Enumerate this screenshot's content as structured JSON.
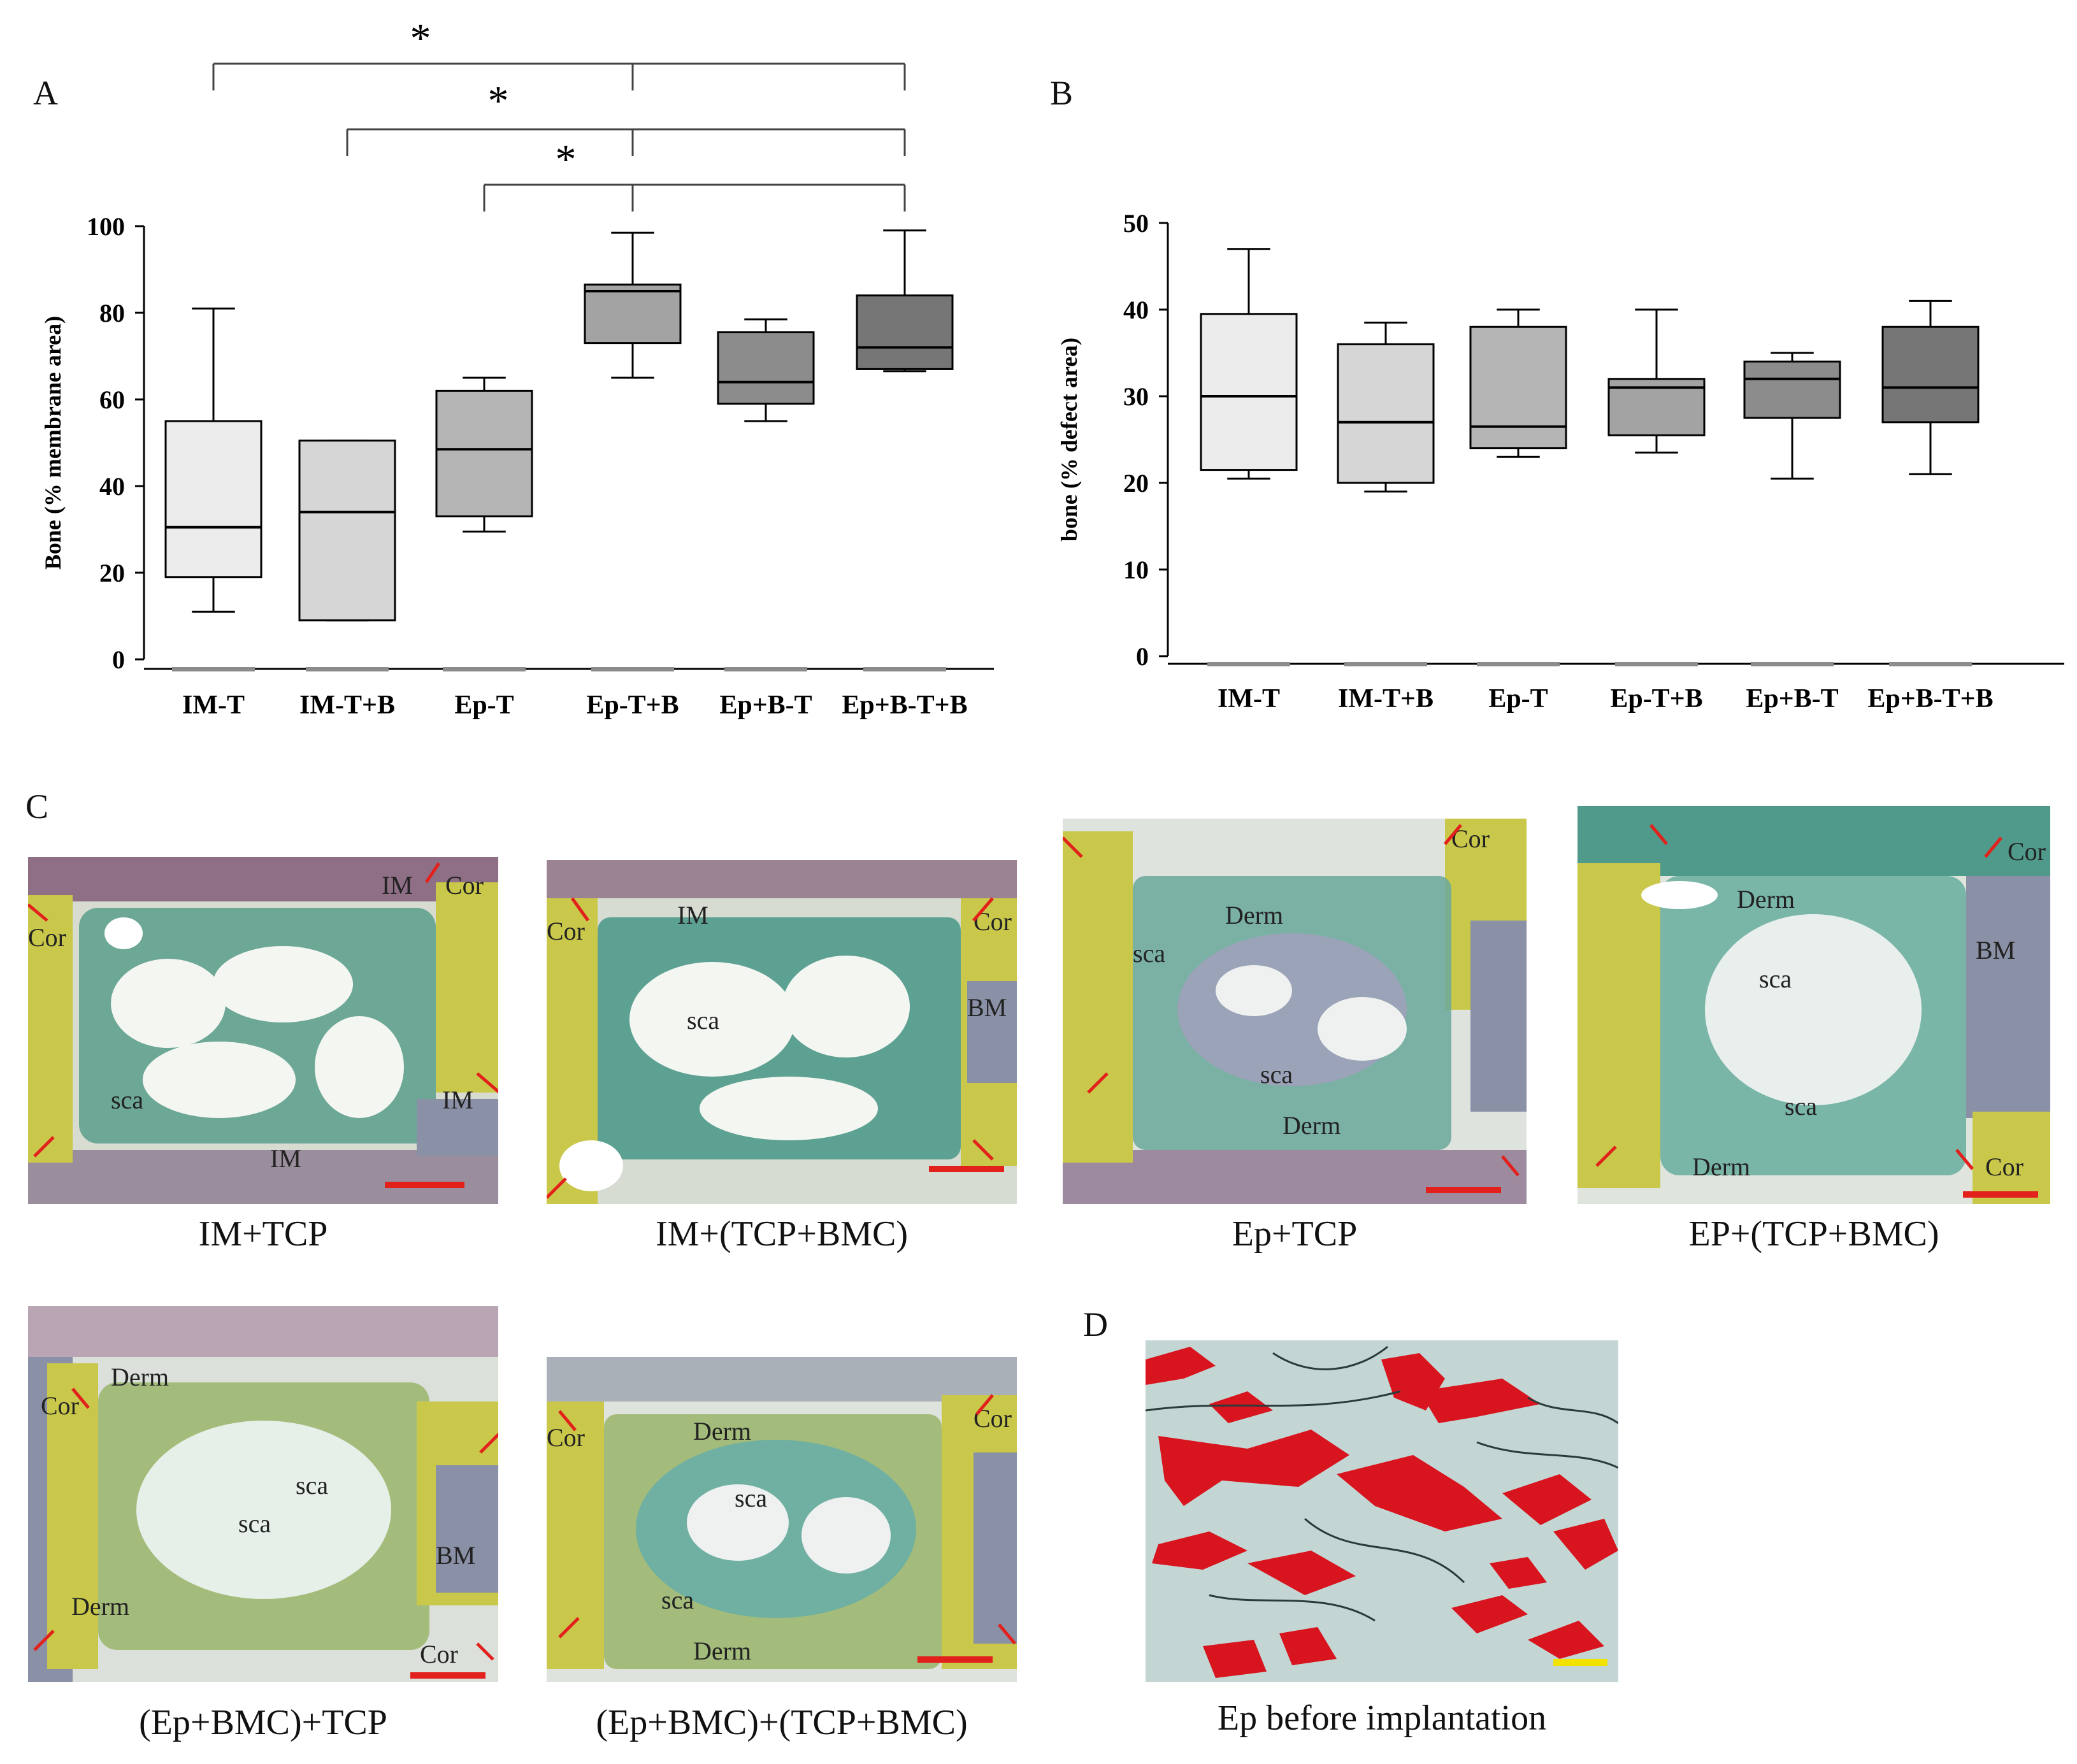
{
  "panel_labels": {
    "A": "A",
    "B": "B",
    "C": "C",
    "D": "D"
  },
  "colors": {
    "box_fills": [
      "#ececec",
      "#d6d6d6",
      "#b5b5b5",
      "#a3a3a3",
      "#8c8c8c",
      "#767676"
    ],
    "histo_yellow": "#c9c84a",
    "histo_green": "#4f9a8a",
    "histo_purple": "#7a5a7a",
    "histo_bluegrey": "#8a90a6",
    "arrow_red": "#e2211c",
    "scale_red": "#e2211c",
    "scale_yellow": "#f2e200",
    "ep_red": "#d8141e",
    "ep_bg": "#c3d6d4"
  },
  "chart_data": [
    {
      "id": "A",
      "type": "box",
      "title": "",
      "xlabel": "",
      "ylabel": "Bone (% membrane area)",
      "ylim": [
        0,
        100
      ],
      "yticks": [
        0,
        20,
        40,
        60,
        80,
        100
      ],
      "categories": [
        "IM-T",
        "IM-T+B",
        "Ep-T",
        "Ep-T+B",
        "Ep+B-T",
        "Ep+B-T+B"
      ],
      "boxes": [
        {
          "min": 11,
          "q1": 19,
          "median": 30.5,
          "q3": 55,
          "max": 81
        },
        {
          "min": 9,
          "q1": 9,
          "median": 34,
          "q3": 50.5,
          "max": 50.5
        },
        {
          "min": 29.5,
          "q1": 33,
          "median": 48.5,
          "q3": 62,
          "max": 65
        },
        {
          "min": 65,
          "q1": 73,
          "median": 85,
          "q3": 86.5,
          "max": 98.5
        },
        {
          "min": 55,
          "q1": 59,
          "median": 64,
          "q3": 75.5,
          "max": 78.5
        },
        {
          "min": 66.5,
          "q1": 67,
          "median": 72,
          "q3": 84,
          "max": 99
        }
      ],
      "significance": [
        {
          "from": "IM-T",
          "to": "Ep+B-T+B",
          "via": "Ep-T+B",
          "label": "*"
        },
        {
          "from": "IM-T+B",
          "to": "Ep+B-T+B",
          "via": "Ep-T+B",
          "label": "*"
        },
        {
          "from": "Ep-T",
          "to": "Ep+B-T+B",
          "via": "Ep-T+B",
          "label": "*"
        }
      ]
    },
    {
      "id": "B",
      "type": "box",
      "title": "",
      "xlabel": "",
      "ylabel": "bone (% defect area)",
      "ylim": [
        0,
        50
      ],
      "yticks": [
        0,
        10,
        20,
        30,
        40,
        50
      ],
      "categories": [
        "IM-T",
        "IM-T+B",
        "Ep-T",
        "Ep-T+B",
        "Ep+B-T",
        "Ep+B-T+B"
      ],
      "boxes": [
        {
          "min": 20.5,
          "q1": 21.5,
          "median": 30,
          "q3": 39.5,
          "max": 47
        },
        {
          "min": 19,
          "q1": 20,
          "median": 27,
          "q3": 36,
          "max": 38.5
        },
        {
          "min": 23,
          "q1": 24,
          "median": 26.5,
          "q3": 38,
          "max": 40
        },
        {
          "min": 23.5,
          "q1": 25.5,
          "median": 31,
          "q3": 32,
          "max": 40
        },
        {
          "min": 20.5,
          "q1": 27.5,
          "median": 32,
          "q3": 34,
          "max": 35
        },
        {
          "min": 21,
          "q1": 27,
          "median": 31,
          "q3": 38,
          "max": 41
        }
      ]
    }
  ],
  "micrographs": [
    {
      "caption": "IM+TCP",
      "labels": [
        "IM",
        "Cor",
        "Cor",
        "sca",
        "IM",
        "IM"
      ]
    },
    {
      "caption": "IM+(TCP+BMC)",
      "labels": [
        "IM",
        "Cor",
        "Cor",
        "sca",
        "BM"
      ]
    },
    {
      "caption": "Ep+TCP",
      "labels": [
        "Cor",
        "Derm",
        "sca",
        "sca",
        "Derm"
      ]
    },
    {
      "caption": "EP+(TCP+BMC)",
      "labels": [
        "Cor",
        "Derm",
        "BM",
        "sca",
        "sca",
        "Derm",
        "Cor"
      ]
    },
    {
      "caption": "(Ep+BMC)+TCP",
      "labels": [
        "Cor",
        "Derm",
        "sca",
        "sca",
        "BM",
        "Derm",
        "Cor"
      ]
    },
    {
      "caption": "(Ep+BMC)+(TCP+BMC)",
      "labels": [
        "Cor",
        "Cor",
        "Derm",
        "sca",
        "sca",
        "Derm"
      ]
    }
  ],
  "panel_d": {
    "caption": "Ep before implantation"
  }
}
